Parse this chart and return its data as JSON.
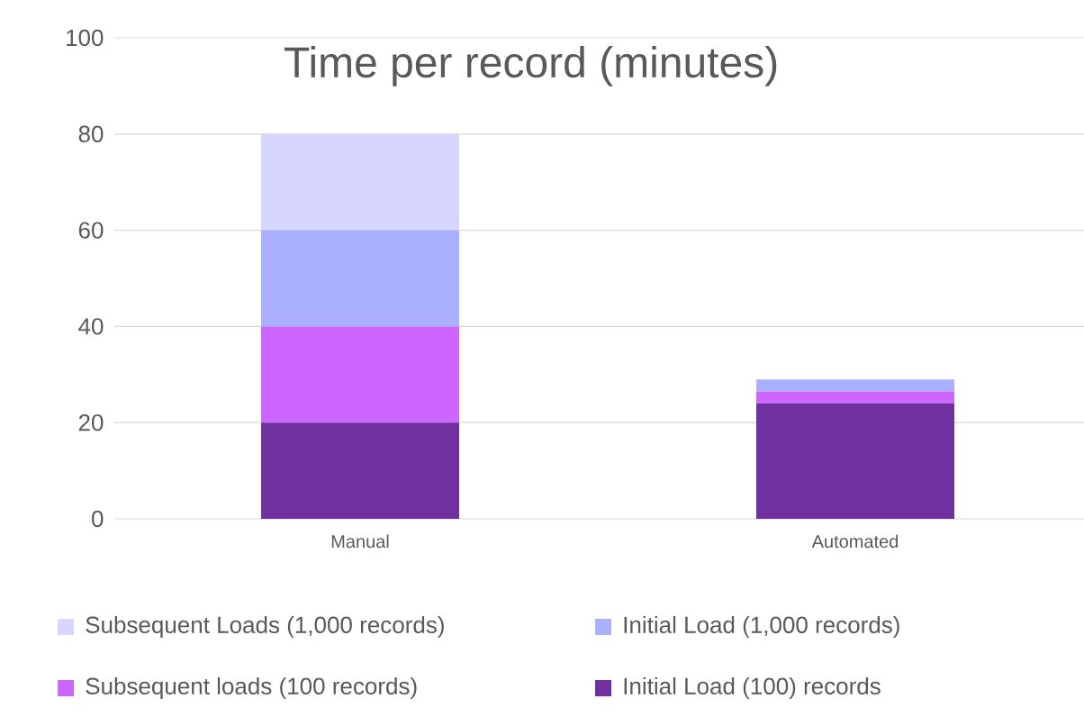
{
  "chart_data": {
    "type": "bar",
    "title": "Time per record (minutes)",
    "categories": [
      "Manual",
      "Automated"
    ],
    "stacked": true,
    "series": [
      {
        "name": "Initial Load (100) records",
        "color": "#7030a0",
        "values": [
          20,
          24
        ]
      },
      {
        "name": "Subsequent loads (100 records)",
        "color": "#cc66ff",
        "values": [
          20,
          2.5
        ]
      },
      {
        "name": "Initial Load (1,000 records)",
        "color": "#aab0ff",
        "values": [
          20,
          2.5
        ]
      },
      {
        "name": "Subsequent Loads (1,000 records)",
        "color": "#d6d6ff",
        "values": [
          20,
          0
        ]
      }
    ],
    "ylim": [
      0,
      100
    ],
    "yticks": [
      0,
      20,
      40,
      60,
      80,
      100
    ],
    "grid": "y",
    "legend": "bottom"
  }
}
